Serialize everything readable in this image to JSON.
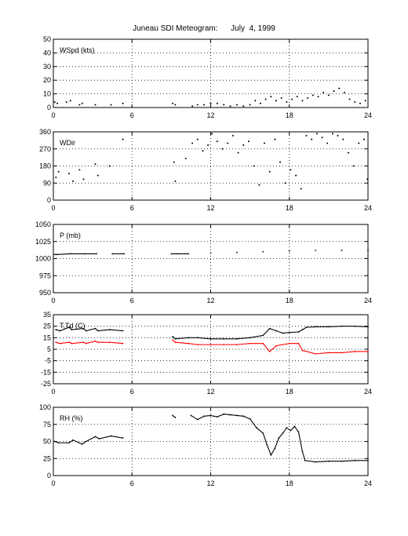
{
  "page_title": "Juneau SDI Meteogram:      July  4, 1999",
  "chart_data": [
    {
      "type": "scatter",
      "label": "WSpd (kts)",
      "xlim": [
        0,
        24
      ],
      "ylim": [
        0,
        50
      ],
      "x_ticks": [
        "0",
        "6",
        "12",
        "18",
        "24"
      ],
      "y_ticks": [
        "0",
        "10",
        "20",
        "30",
        "40",
        "50"
      ],
      "grid": true,
      "series": [
        {
          "color": "#000000",
          "points": [
            [
              0.1,
              4
            ],
            [
              0.3,
              3
            ],
            [
              1.0,
              4
            ],
            [
              1.3,
              5
            ],
            [
              2.0,
              2
            ],
            [
              2.2,
              3
            ],
            [
              3.2,
              2
            ],
            [
              4.4,
              2
            ],
            [
              5.3,
              3
            ],
            [
              9.1,
              3
            ],
            [
              9.3,
              2
            ],
            [
              10.6,
              1
            ],
            [
              11.0,
              2
            ],
            [
              11.5,
              2
            ],
            [
              12.0,
              3
            ],
            [
              12.5,
              3
            ],
            [
              13.0,
              2
            ],
            [
              13.5,
              1
            ],
            [
              14.0,
              2
            ],
            [
              14.5,
              1
            ],
            [
              15.0,
              2
            ],
            [
              15.4,
              5
            ],
            [
              15.8,
              3
            ],
            [
              16.2,
              6
            ],
            [
              16.6,
              8
            ],
            [
              17.0,
              5
            ],
            [
              17.4,
              7
            ],
            [
              17.8,
              4
            ],
            [
              18.2,
              6
            ],
            [
              18.6,
              8
            ],
            [
              19.0,
              5
            ],
            [
              19.4,
              7
            ],
            [
              19.8,
              9
            ],
            [
              20.2,
              8
            ],
            [
              20.6,
              11
            ],
            [
              21.0,
              9
            ],
            [
              21.4,
              12
            ],
            [
              21.8,
              14
            ],
            [
              22.2,
              11
            ],
            [
              22.6,
              6
            ],
            [
              23.0,
              4
            ],
            [
              23.4,
              3
            ],
            [
              23.8,
              5
            ]
          ]
        }
      ]
    },
    {
      "type": "scatter",
      "label": "WDir",
      "xlim": [
        0,
        24
      ],
      "ylim": [
        0,
        360
      ],
      "x_ticks": [
        "0",
        "6",
        "12",
        "18",
        "24"
      ],
      "y_ticks": [
        "0",
        "90",
        "180",
        "270",
        "360"
      ],
      "grid": true,
      "series": [
        {
          "color": "#000000",
          "points": [
            [
              0.2,
              120
            ],
            [
              0.4,
              150
            ],
            [
              1.2,
              140
            ],
            [
              1.5,
              100
            ],
            [
              2.0,
              160
            ],
            [
              2.3,
              110
            ],
            [
              3.2,
              190
            ],
            [
              3.4,
              130
            ],
            [
              4.3,
              180
            ],
            [
              5.3,
              320
            ],
            [
              9.2,
              200
            ],
            [
              9.3,
              100
            ],
            [
              10.1,
              220
            ],
            [
              10.6,
              300
            ],
            [
              11.0,
              320
            ],
            [
              11.4,
              260
            ],
            [
              11.8,
              290
            ],
            [
              12.1,
              350
            ],
            [
              12.5,
              310
            ],
            [
              12.9,
              270
            ],
            [
              13.3,
              300
            ],
            [
              13.7,
              340
            ],
            [
              14.1,
              250
            ],
            [
              14.5,
              290
            ],
            [
              14.9,
              310
            ],
            [
              15.3,
              180
            ],
            [
              15.7,
              80
            ],
            [
              16.1,
              300
            ],
            [
              16.5,
              150
            ],
            [
              16.9,
              320
            ],
            [
              17.3,
              200
            ],
            [
              17.7,
              90
            ],
            [
              18.1,
              160
            ],
            [
              18.5,
              130
            ],
            [
              18.9,
              60
            ],
            [
              19.3,
              340
            ],
            [
              19.7,
              320
            ],
            [
              20.1,
              350
            ],
            [
              20.5,
              330
            ],
            [
              20.9,
              300
            ],
            [
              21.3,
              350
            ],
            [
              21.7,
              340
            ],
            [
              22.1,
              320
            ],
            [
              22.5,
              250
            ],
            [
              22.9,
              180
            ],
            [
              23.3,
              300
            ],
            [
              23.7,
              320
            ],
            [
              23.95,
              110
            ]
          ]
        }
      ]
    },
    {
      "type": "line",
      "label": "P (mb)",
      "xlim": [
        0,
        24
      ],
      "ylim": [
        950,
        1050
      ],
      "x_ticks": [
        "0",
        "6",
        "12",
        "18",
        "24"
      ],
      "y_ticks": [
        "950",
        "975",
        "1000",
        "1025",
        "1050"
      ],
      "grid": true,
      "series": [
        {
          "color": "#000000",
          "points": [
            [
              0.1,
              1006
            ],
            [
              0.3,
              1006
            ],
            [
              1.2,
              1007
            ],
            [
              1.4,
              1007
            ],
            [
              2.4,
              1007
            ],
            [
              3.3,
              1007
            ],
            [
              4.5,
              1007
            ],
            [
              5.4,
              1007
            ],
            [
              9.0,
              1007
            ],
            [
              9.5,
              1007
            ],
            [
              10.3,
              1007
            ],
            [
              12,
              1008
            ],
            [
              14,
              1009
            ],
            [
              16,
              1010
            ],
            [
              18,
              1011
            ],
            [
              20,
              1012
            ],
            [
              22,
              1012
            ],
            [
              24,
              1012
            ]
          ]
        }
      ]
    },
    {
      "type": "line",
      "label": "T,Td (C)",
      "xlim": [
        0,
        24
      ],
      "ylim": [
        -25,
        35
      ],
      "x_ticks": [
        "0",
        "6",
        "12",
        "18",
        "24"
      ],
      "y_ticks": [
        "-25",
        "-15",
        "-5",
        "5",
        "15",
        "25",
        "35"
      ],
      "grid": true,
      "series": [
        {
          "color": "#000000",
          "points": [
            [
              0.2,
              22
            ],
            [
              0.5,
              21
            ],
            [
              1.2,
              24
            ],
            [
              1.4,
              22
            ],
            [
              2.3,
              23
            ],
            [
              2.5,
              21
            ],
            [
              3.2,
              23
            ],
            [
              3.4,
              21
            ],
            [
              4.3,
              22
            ],
            [
              5.3,
              21
            ],
            [
              9.1,
              16
            ],
            [
              9.3,
              14
            ],
            [
              10.3,
              15
            ],
            [
              11.0,
              15
            ],
            [
              12.0,
              14
            ],
            [
              13.0,
              14
            ],
            [
              14.0,
              14
            ],
            [
              15.0,
              15
            ],
            [
              16.0,
              17
            ],
            [
              16.5,
              23
            ],
            [
              17.0,
              21
            ],
            [
              17.5,
              19
            ],
            [
              18.0,
              19.5
            ],
            [
              18.7,
              20
            ],
            [
              19.0,
              22
            ],
            [
              19.3,
              24
            ],
            [
              20.0,
              24.5
            ],
            [
              21.0,
              24.5
            ],
            [
              22.0,
              25
            ],
            [
              23.0,
              25
            ],
            [
              24.0,
              24.5
            ]
          ]
        },
        {
          "color": "#ff0000",
          "points": [
            [
              0.2,
              11
            ],
            [
              0.5,
              10
            ],
            [
              1.2,
              11
            ],
            [
              1.4,
              10
            ],
            [
              2.3,
              11
            ],
            [
              2.5,
              10
            ],
            [
              3.2,
              12
            ],
            [
              3.4,
              11
            ],
            [
              4.3,
              11
            ],
            [
              5.3,
              10
            ],
            [
              9.1,
              13
            ],
            [
              9.3,
              11
            ],
            [
              10.3,
              10
            ],
            [
              11.0,
              9
            ],
            [
              12.0,
              9
            ],
            [
              13.0,
              9
            ],
            [
              14.0,
              9
            ],
            [
              15.0,
              10
            ],
            [
              16.0,
              10
            ],
            [
              16.5,
              3
            ],
            [
              17.0,
              8
            ],
            [
              18.0,
              10
            ],
            [
              18.7,
              10
            ],
            [
              19.0,
              4
            ],
            [
              20.0,
              1
            ],
            [
              21.0,
              2
            ],
            [
              22.0,
              2
            ],
            [
              23.0,
              3
            ],
            [
              24.0,
              3
            ]
          ]
        }
      ]
    },
    {
      "type": "line",
      "label": "RH (%)",
      "xlim": [
        0,
        24
      ],
      "ylim": [
        0,
        100
      ],
      "x_ticks": [
        "0",
        "6",
        "12",
        "18",
        "24"
      ],
      "y_ticks": [
        "0",
        "25",
        "50",
        "75",
        "100"
      ],
      "grid": true,
      "series": [
        {
          "color": "#000000",
          "points": [
            [
              0.1,
              50
            ],
            [
              0.4,
              48
            ],
            [
              1.2,
              48
            ],
            [
              1.5,
              52
            ],
            [
              2.2,
              46
            ],
            [
              2.4,
              49
            ],
            [
              3.2,
              57
            ],
            [
              3.5,
              54
            ],
            [
              4.4,
              58
            ],
            [
              5.3,
              55
            ],
            [
              9.1,
              88
            ],
            [
              9.3,
              85
            ],
            [
              10.5,
              88
            ],
            [
              11.0,
              82
            ],
            [
              11.5,
              87
            ],
            [
              12.0,
              88
            ],
            [
              12.5,
              86
            ],
            [
              13.0,
              90
            ],
            [
              13.5,
              89
            ],
            [
              14.0,
              88
            ],
            [
              14.5,
              87
            ],
            [
              15.0,
              83
            ],
            [
              15.5,
              70
            ],
            [
              16.0,
              62
            ],
            [
              16.3,
              45
            ],
            [
              16.6,
              30
            ],
            [
              16.9,
              40
            ],
            [
              17.2,
              55
            ],
            [
              17.5,
              62
            ],
            [
              17.8,
              70
            ],
            [
              18.1,
              66
            ],
            [
              18.4,
              72
            ],
            [
              18.7,
              64
            ],
            [
              19.0,
              35
            ],
            [
              19.2,
              22
            ],
            [
              20.0,
              20
            ],
            [
              21.0,
              21
            ],
            [
              22.0,
              21
            ],
            [
              23.0,
              22
            ],
            [
              24.0,
              22
            ]
          ]
        }
      ]
    }
  ]
}
